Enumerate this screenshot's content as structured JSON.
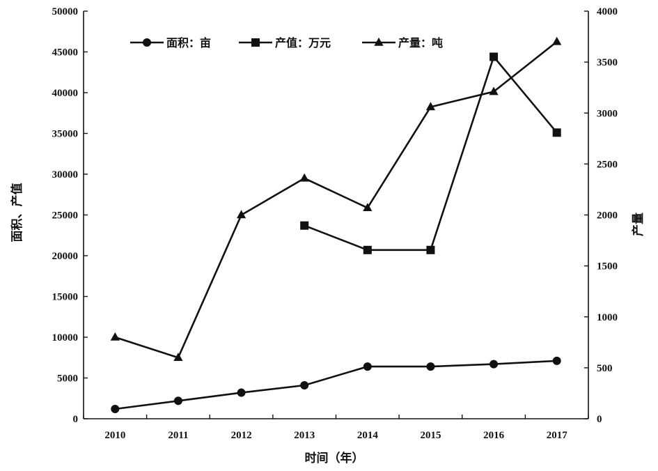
{
  "chart_data": {
    "type": "line",
    "categories": [
      "2010",
      "2011",
      "2012",
      "2013",
      "2014",
      "2015",
      "2016",
      "2017"
    ],
    "xlabel": "时间（年）",
    "ylabel": "面积、产值",
    "y2label": "产量",
    "ylim": [
      0,
      50000
    ],
    "y2lim": [
      0,
      4000
    ],
    "yticks": [
      "0",
      "5000",
      "10000",
      "15000",
      "20000",
      "25000",
      "30000",
      "35000",
      "40000",
      "45000",
      "50000"
    ],
    "y2ticks": [
      "0",
      "500",
      "1000",
      "1500",
      "2000",
      "2500",
      "3000",
      "3500",
      "4000"
    ],
    "legend_position": "top",
    "series": [
      {
        "name": "面积：亩",
        "axis": "left",
        "marker": "circle",
        "color": "#111111",
        "values": [
          1200,
          2200,
          3200,
          4100,
          6400,
          6400,
          6700,
          7100
        ]
      },
      {
        "name": "产值：万元",
        "axis": "left",
        "marker": "square",
        "color": "#111111",
        "values": [
          null,
          null,
          null,
          23700,
          20700,
          20700,
          44400,
          35100
        ]
      },
      {
        "name": "产量：吨",
        "axis": "right",
        "marker": "triangle",
        "color": "#111111",
        "values": [
          800,
          600,
          2000,
          2360,
          2070,
          3060,
          3210,
          3700
        ]
      }
    ]
  }
}
